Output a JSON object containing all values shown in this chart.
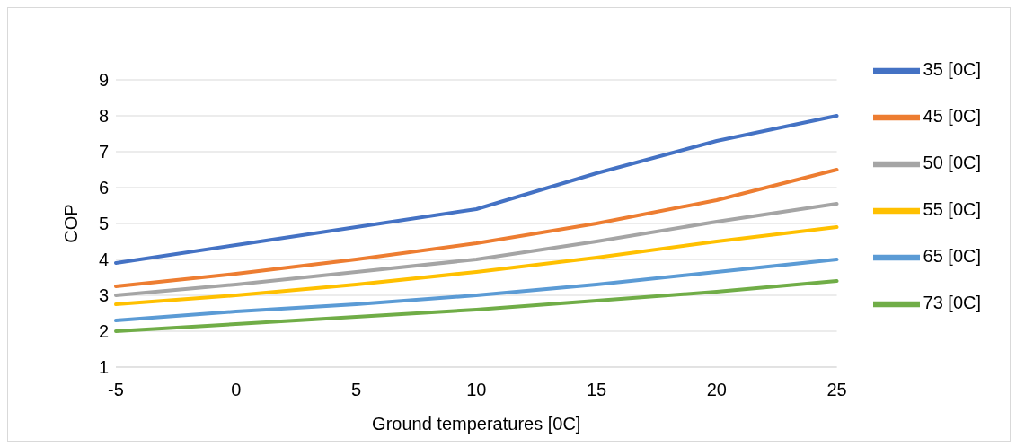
{
  "chart_data": {
    "type": "line",
    "xlabel": "Ground temperatures [0C]",
    "ylabel": "COP",
    "categories": [
      "-5",
      "0",
      "5",
      "10",
      "15",
      "20",
      "25"
    ],
    "series": [
      {
        "name": "35 [0C]",
        "color": "#4472c4",
        "values": [
          3.9,
          4.4,
          4.9,
          5.4,
          6.4,
          7.3,
          8.0
        ]
      },
      {
        "name": "45 [0C]",
        "color": "#ed7d31",
        "values": [
          3.25,
          3.6,
          4.0,
          4.45,
          5.0,
          5.65,
          6.5
        ]
      },
      {
        "name": "50 [0C]",
        "color": "#a5a5a5",
        "values": [
          3.0,
          3.3,
          3.65,
          4.0,
          4.5,
          5.05,
          5.55
        ]
      },
      {
        "name": "55 [0C]",
        "color": "#ffc000",
        "values": [
          2.75,
          3.0,
          3.3,
          3.65,
          4.05,
          4.5,
          4.9
        ]
      },
      {
        "name": "65 [0C]",
        "color": "#5b9bd5",
        "values": [
          2.3,
          2.55,
          2.75,
          3.0,
          3.3,
          3.65,
          4.0
        ]
      },
      {
        "name": "73 [0C]",
        "color": "#70ad47",
        "values": [
          2.0,
          2.2,
          2.4,
          2.6,
          2.85,
          3.1,
          3.4
        ]
      }
    ],
    "ylim": [
      1,
      9
    ],
    "yticks": [
      1,
      2,
      3,
      4,
      5,
      6,
      7,
      8,
      9
    ],
    "grid": "y",
    "legend": "right",
    "marker": "none",
    "line_style": "solid"
  }
}
